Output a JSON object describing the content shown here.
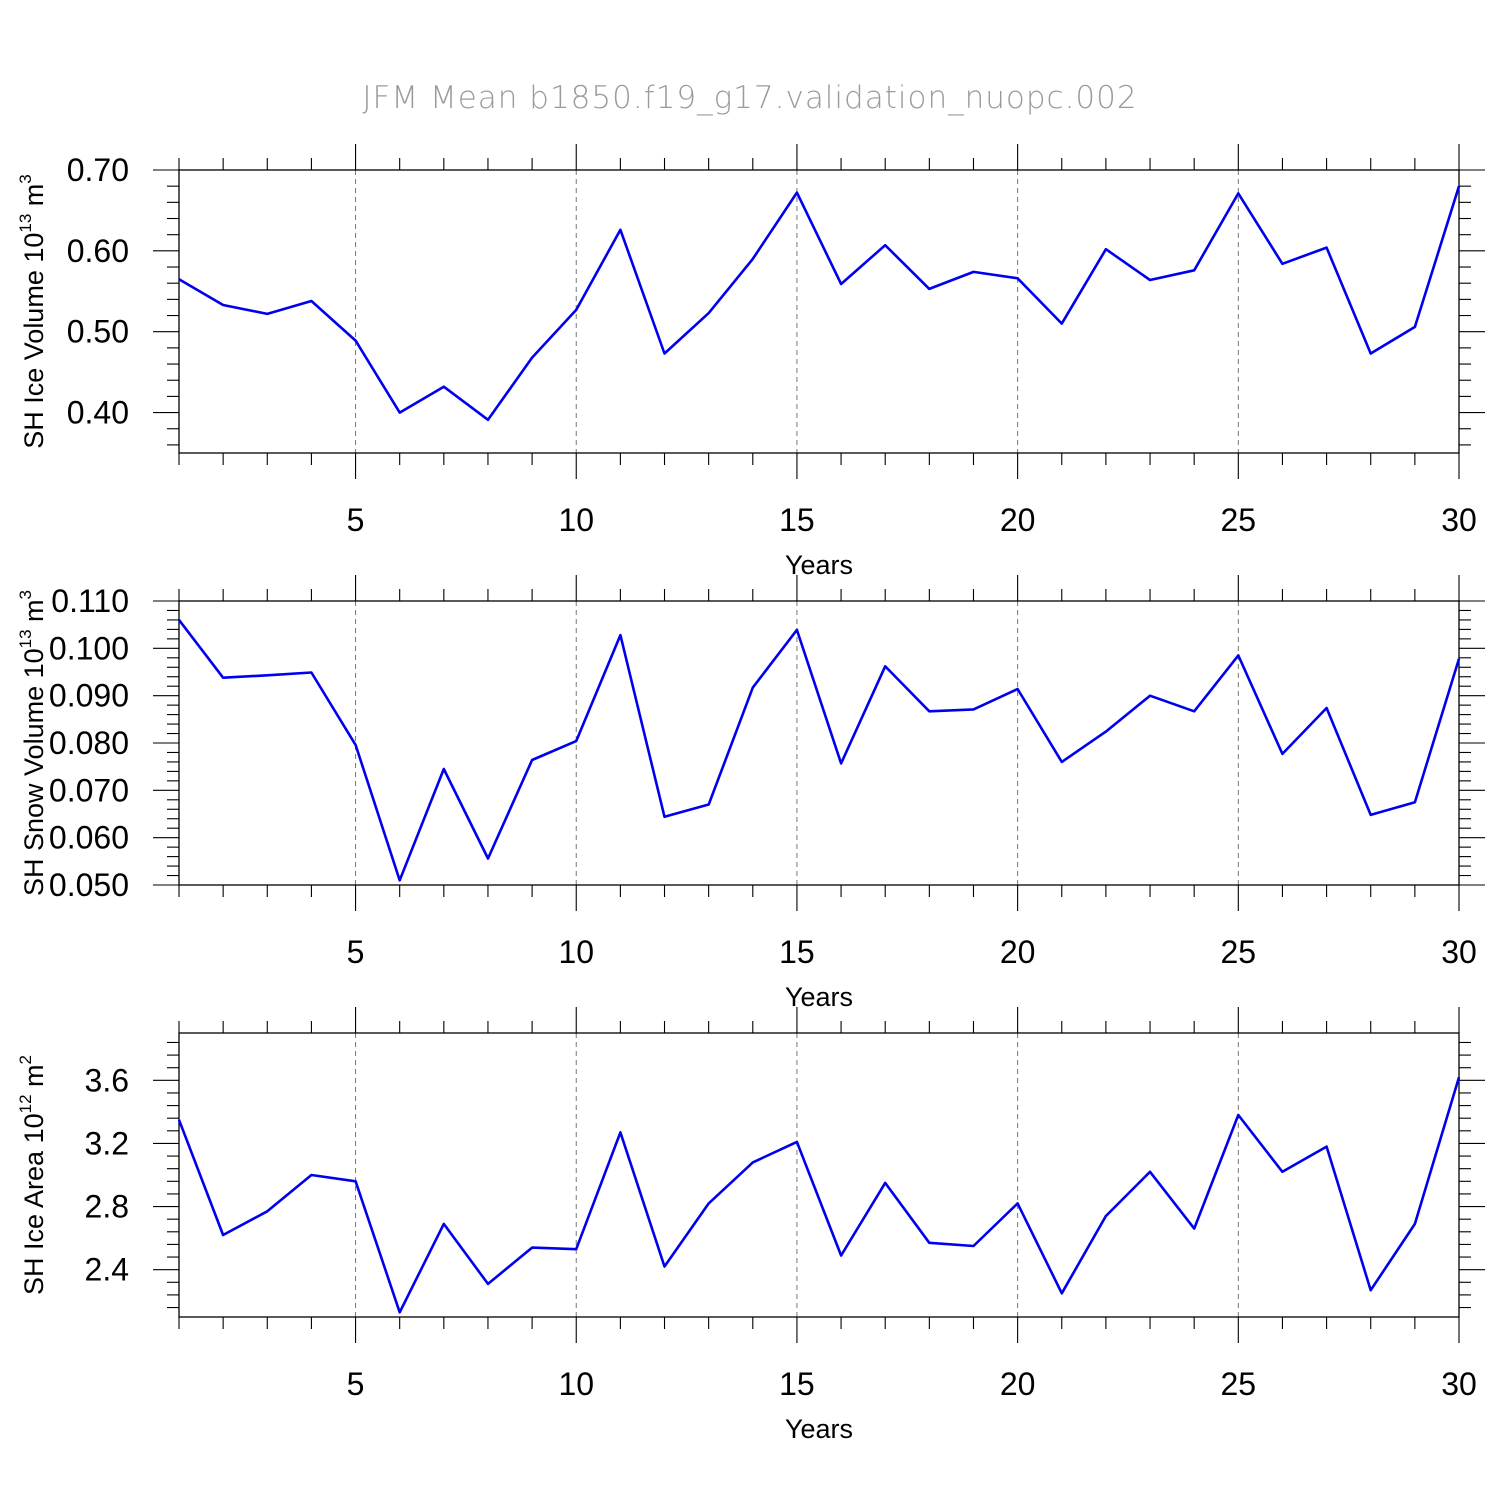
{
  "title": "JFM Mean b1850.f19_g17.validation_nuopc.002",
  "colors": {
    "series": "#0000ee",
    "grid": "#777777",
    "title": "#9a9a9a"
  },
  "chart_data": [
    {
      "type": "line",
      "ylabel": {
        "prefix": "SH Ice Volume 10",
        "exp": "13",
        "unit": " m",
        "unit_exp": "3"
      },
      "xlabel": "Years",
      "xlim": [
        1,
        30
      ],
      "ylim": [
        0.35,
        0.7
      ],
      "xticks": [
        5,
        10,
        15,
        20,
        25,
        30
      ],
      "yticks": [
        "0.40",
        "0.50",
        "0.60",
        "0.70"
      ],
      "x_gridlines": [
        5,
        10,
        15,
        20,
        25
      ],
      "x": [
        1,
        2,
        3,
        4,
        5,
        6,
        7,
        8,
        9,
        10,
        11,
        12,
        13,
        14,
        15,
        16,
        17,
        18,
        19,
        20,
        21,
        22,
        23,
        24,
        25,
        26,
        27,
        28,
        29,
        30
      ],
      "values": [
        0.565,
        0.533,
        0.522,
        0.538,
        0.489,
        0.4,
        0.432,
        0.391,
        0.468,
        0.527,
        0.626,
        0.473,
        0.523,
        0.59,
        0.672,
        0.559,
        0.607,
        0.553,
        0.574,
        0.566,
        0.51,
        0.602,
        0.564,
        0.576,
        0.671,
        0.584,
        0.604,
        0.473,
        0.506,
        0.68
      ]
    },
    {
      "type": "line",
      "ylabel": {
        "prefix": "SH Snow Volume 10",
        "exp": "13",
        "unit": " m",
        "unit_exp": "3"
      },
      "xlabel": "Years",
      "xlim": [
        1,
        30
      ],
      "ylim": [
        0.05,
        0.11
      ],
      "xticks": [
        5,
        10,
        15,
        20,
        25,
        30
      ],
      "yticks": [
        "0.050",
        "0.060",
        "0.070",
        "0.080",
        "0.090",
        "0.100",
        "0.110"
      ],
      "x_gridlines": [
        5,
        10,
        15,
        20,
        25
      ],
      "x": [
        1,
        2,
        3,
        4,
        5,
        6,
        7,
        8,
        9,
        10,
        11,
        12,
        13,
        14,
        15,
        16,
        17,
        18,
        19,
        20,
        21,
        22,
        23,
        24,
        25,
        26,
        27,
        28,
        29,
        30
      ],
      "values": [
        0.106,
        0.0938,
        0.0943,
        0.0949,
        0.0796,
        0.051,
        0.0745,
        0.0556,
        0.0764,
        0.0804,
        0.1028,
        0.0644,
        0.067,
        0.0917,
        0.1039,
        0.0757,
        0.0962,
        0.0867,
        0.0871,
        0.0914,
        0.076,
        0.0824,
        0.09,
        0.0867,
        0.0985,
        0.0777,
        0.0874,
        0.0648,
        0.0675,
        0.0978
      ]
    },
    {
      "type": "line",
      "ylabel": {
        "prefix": "SH Ice Area 10",
        "exp": "12",
        "unit": " m",
        "unit_exp": "2"
      },
      "xlabel": "Years",
      "xlim": [
        1,
        30
      ],
      "ylim": [
        2.1,
        3.9
      ],
      "xticks": [
        5,
        10,
        15,
        20,
        25,
        30
      ],
      "yticks": [
        "2.4",
        "2.8",
        "3.2",
        "3.6"
      ],
      "x_gridlines": [
        5,
        10,
        15,
        20,
        25
      ],
      "x": [
        1,
        2,
        3,
        4,
        5,
        6,
        7,
        8,
        9,
        10,
        11,
        12,
        13,
        14,
        15,
        16,
        17,
        18,
        19,
        20,
        21,
        22,
        23,
        24,
        25,
        26,
        27,
        28,
        29,
        30
      ],
      "values": [
        3.35,
        2.62,
        2.77,
        3.0,
        2.96,
        2.13,
        2.69,
        2.31,
        2.54,
        2.53,
        3.27,
        2.42,
        2.82,
        3.08,
        3.21,
        2.49,
        2.95,
        2.57,
        2.55,
        2.82,
        2.25,
        2.74,
        3.02,
        2.66,
        3.38,
        3.02,
        3.18,
        2.27,
        2.69,
        3.62
      ]
    }
  ]
}
